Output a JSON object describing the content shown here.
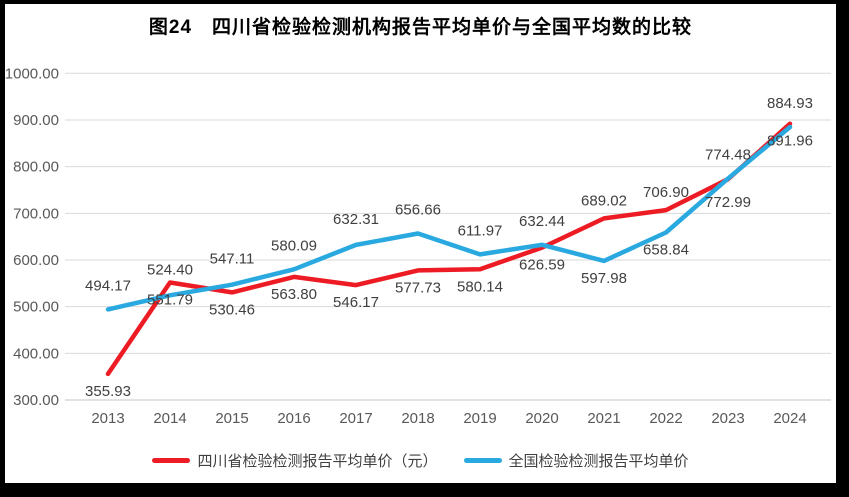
{
  "title": "图24　四川省检验检测机构报告平均单价与全国平均数的比较",
  "chart_data": {
    "type": "line",
    "x": [
      "2013",
      "2014",
      "2015",
      "2016",
      "2017",
      "2018",
      "2019",
      "2020",
      "2021",
      "2022",
      "2023",
      "2024"
    ],
    "ylim": [
      300,
      1000
    ],
    "ytick_step": 100,
    "yticks_top_down": [
      "1000.00",
      "900.00",
      "800.00",
      "700.00",
      "600.00",
      "500.00",
      "400.00",
      "300.00"
    ],
    "grid": true,
    "legend_position": "bottom",
    "series": [
      {
        "key": "sichuan",
        "name": "四川省检验检测报告平均单价（元）",
        "color": "#ED1C24",
        "values": [
          355.93,
          551.79,
          530.46,
          563.8,
          546.17,
          577.73,
          580.14,
          626.59,
          689.02,
          706.9,
          772.99,
          891.96
        ],
        "label_positions": [
          "below",
          "below",
          "below",
          "below",
          "below",
          "below",
          "below",
          "below",
          "above",
          "above",
          "below",
          "below"
        ],
        "label_dy": [
          0,
          0,
          0,
          0,
          0,
          0,
          0,
          0,
          0,
          0,
          6,
          0
        ]
      },
      {
        "key": "national",
        "name": "全国检验检测报告平均单价",
        "color": "#29A9E0",
        "values": [
          494.17,
          524.4,
          547.11,
          580.09,
          632.31,
          656.66,
          611.97,
          632.44,
          597.98,
          658.84,
          774.48,
          884.93
        ],
        "label_positions": [
          "above",
          "above",
          "above",
          "above",
          "above",
          "above",
          "above",
          "above",
          "below",
          "below",
          "above",
          "above"
        ],
        "label_dy": [
          -6,
          -8,
          -8,
          -6,
          -8,
          -6,
          -6,
          -6,
          0,
          0,
          -6,
          -6
        ]
      }
    ],
    "styles": {
      "grid_color": "#D9D9D9",
      "baseline_color": "#C6C6C6",
      "axis_label_color": "#595959",
      "data_label_color": "#404040",
      "background": "#FFFFFF",
      "frame_color": "#000000",
      "line_width": 4.5
    }
  }
}
